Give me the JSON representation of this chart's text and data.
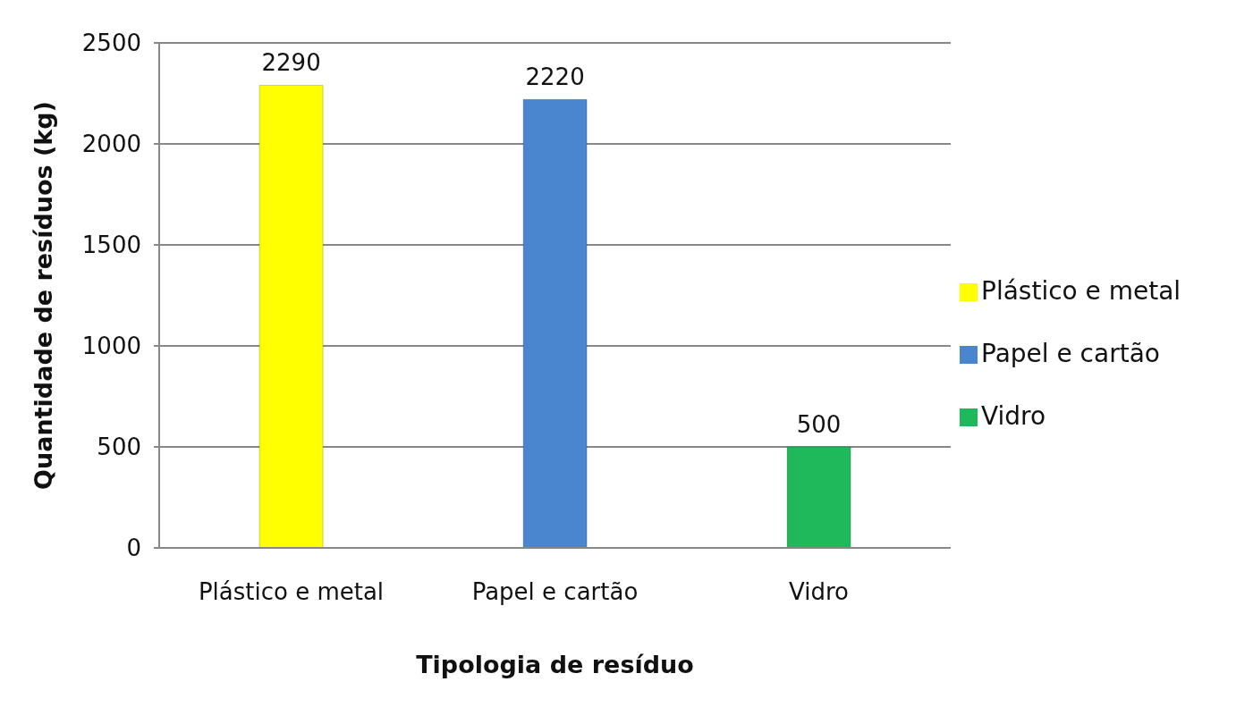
{
  "chart_data": {
    "type": "bar",
    "xlabel": "Tipologia de resíduo",
    "ylabel": "Quantidade de resíduos (kg)",
    "categories": [
      "Plástico e metal",
      "Papel e cartão",
      "Vidro"
    ],
    "series": [
      {
        "name": "Plástico e metal",
        "color": "#ffff00",
        "values": [
          2290,
          null,
          null
        ]
      },
      {
        "name": "Papel e cartão",
        "color": "#4a86d0",
        "values": [
          null,
          2220,
          null
        ]
      },
      {
        "name": "Vidro",
        "color": "#1fb85a",
        "values": [
          null,
          null,
          500
        ]
      }
    ],
    "stacked": true,
    "ylim": [
      0,
      2500
    ],
    "yticks": [
      0,
      500,
      1000,
      1500,
      2000,
      2500
    ],
    "grid": "y",
    "legend": "right",
    "data_labels": true
  }
}
